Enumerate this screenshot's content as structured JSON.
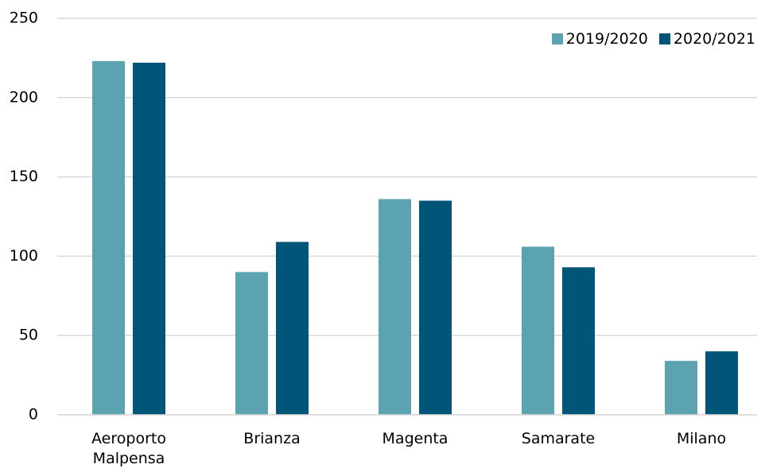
{
  "chart_data": {
    "type": "bar",
    "categories": [
      "Aeroporto Malpensa",
      "Brianza",
      "Magenta",
      "Samarate",
      "Milano"
    ],
    "series": [
      {
        "name": "2019/2020",
        "color": "#5ba3b0",
        "values": [
          223,
          90,
          136,
          106,
          34
        ]
      },
      {
        "name": "2020/2021",
        "color": "#005578",
        "values": [
          222,
          109,
          135,
          93,
          40
        ]
      }
    ],
    "ylim": [
      0,
      250
    ],
    "yticks": [
      0,
      50,
      100,
      150,
      200,
      250
    ],
    "grid": true,
    "legend": "top-right"
  }
}
